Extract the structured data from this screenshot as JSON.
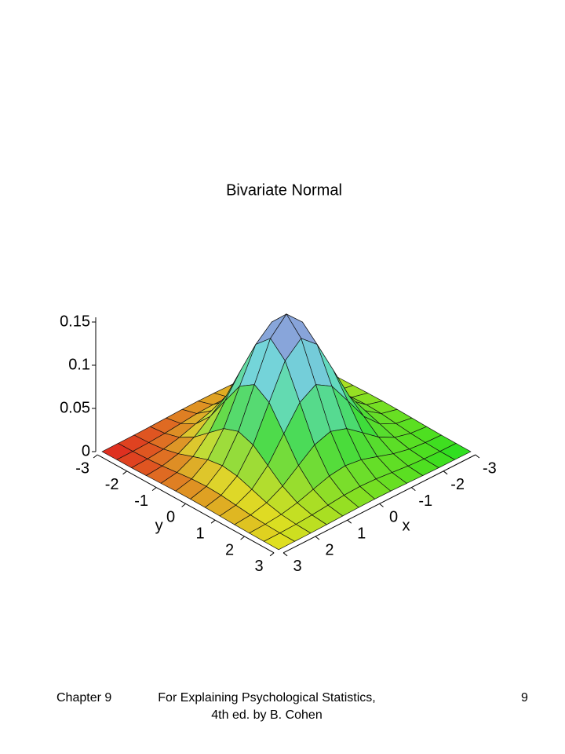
{
  "chart_data": {
    "type": "surface",
    "title": "Bivariate Normal",
    "x_label": "x",
    "y_label": "y",
    "x": [
      -3,
      -2.5,
      -2,
      -1.5,
      -1,
      -0.5,
      0,
      0.5,
      1,
      1.5,
      2,
      2.5,
      3
    ],
    "y": [
      -3,
      -2.5,
      -2,
      -1.5,
      -1,
      -0.5,
      0,
      0.5,
      1,
      1.5,
      2,
      2.5,
      3
    ],
    "z": [
      [
        0.0,
        0.0001,
        0.0002,
        0.0006,
        0.0011,
        0.0016,
        0.0018,
        0.0016,
        0.0011,
        0.0006,
        0.0002,
        0.0001,
        0.0
      ],
      [
        0.0001,
        0.0003,
        0.001,
        0.0023,
        0.0042,
        0.0062,
        0.007,
        0.0062,
        0.0042,
        0.0023,
        0.001,
        0.0003,
        0.0001
      ],
      [
        0.0002,
        0.001,
        0.0029,
        0.007,
        0.0131,
        0.019,
        0.0215,
        0.019,
        0.0131,
        0.007,
        0.0029,
        0.001,
        0.0002
      ],
      [
        0.0006,
        0.0023,
        0.007,
        0.0168,
        0.0313,
        0.0456,
        0.0517,
        0.0456,
        0.0313,
        0.0168,
        0.007,
        0.0023,
        0.0006
      ],
      [
        0.0011,
        0.0042,
        0.0131,
        0.0313,
        0.0586,
        0.0852,
        0.0965,
        0.0852,
        0.0586,
        0.0313,
        0.0131,
        0.0042,
        0.0011
      ],
      [
        0.0016,
        0.0062,
        0.019,
        0.0456,
        0.0852,
        0.124,
        0.1405,
        0.124,
        0.0852,
        0.0456,
        0.019,
        0.0062,
        0.0016
      ],
      [
        0.0018,
        0.007,
        0.0215,
        0.0517,
        0.0965,
        0.1405,
        0.1592,
        0.1405,
        0.0965,
        0.0517,
        0.0215,
        0.007,
        0.0018
      ],
      [
        0.0016,
        0.0062,
        0.019,
        0.0456,
        0.0852,
        0.124,
        0.1405,
        0.124,
        0.0852,
        0.0456,
        0.019,
        0.0062,
        0.0016
      ],
      [
        0.0011,
        0.0042,
        0.0131,
        0.0313,
        0.0586,
        0.0852,
        0.0965,
        0.0852,
        0.0586,
        0.0313,
        0.0131,
        0.0042,
        0.0011
      ],
      [
        0.0006,
        0.0023,
        0.007,
        0.0168,
        0.0313,
        0.0456,
        0.0517,
        0.0456,
        0.0313,
        0.0168,
        0.007,
        0.0023,
        0.0006
      ],
      [
        0.0002,
        0.001,
        0.0029,
        0.007,
        0.0131,
        0.019,
        0.0215,
        0.019,
        0.0131,
        0.007,
        0.0029,
        0.001,
        0.0002
      ],
      [
        0.0001,
        0.0003,
        0.001,
        0.0023,
        0.0042,
        0.0062,
        0.007,
        0.0062,
        0.0042,
        0.0023,
        0.001,
        0.0003,
        0.0001
      ],
      [
        0.0,
        0.0001,
        0.0002,
        0.0006,
        0.0011,
        0.0016,
        0.0018,
        0.0016,
        0.0011,
        0.0006,
        0.0002,
        0.0001,
        0.0
      ]
    ],
    "xlim": [
      -3,
      3
    ],
    "ylim": [
      -3,
      3
    ],
    "zlim": [
      0,
      0.16
    ],
    "xticks": [
      -3,
      -2,
      -1,
      0,
      1,
      2,
      3
    ],
    "yticks": [
      -3,
      -2,
      -1,
      0,
      1,
      2,
      3
    ],
    "zticks": [
      0,
      0.05,
      0.1,
      0.15
    ]
  },
  "footer": {
    "left": "Chapter 9",
    "center": "For Explaining Psychological Statistics, 4th ed. by B. Cohen",
    "right": "9"
  }
}
